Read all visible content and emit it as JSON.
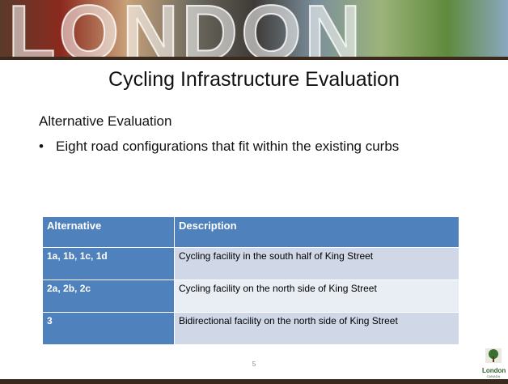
{
  "banner": {
    "text": "LONDON"
  },
  "title": "Cycling Infrastructure Evaluation",
  "subtitle": "Alternative Evaluation",
  "bullets": [
    "Eight road configurations that fit within the existing curbs"
  ],
  "table": {
    "header": [
      "Alternative",
      "Description"
    ],
    "rows": [
      [
        "1a, 1b, 1c, 1d",
        "Cycling facility in the south half of King Street"
      ],
      [
        "2a, 2b, 2c",
        "Cycling facility on the north side of King Street"
      ],
      [
        "3",
        "Bidirectional facility on the north side of King Street"
      ]
    ]
  },
  "page_number": "5",
  "logo": {
    "text": "London",
    "subtext": "CANADA"
  }
}
